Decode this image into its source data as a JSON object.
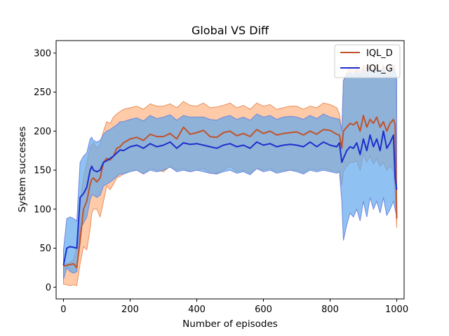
{
  "chart_data": {
    "type": "line",
    "title": "Global VS Diff",
    "xlabel": "Number of episodes",
    "ylabel": "System successes",
    "xlim": [
      -22,
      1022
    ],
    "ylim": [
      -15,
      316
    ],
    "xticks": [
      0,
      200,
      400,
      600,
      800,
      1000
    ],
    "yticks": [
      0,
      50,
      100,
      150,
      200,
      250,
      300
    ],
    "legend_position": "top-right",
    "grid": false,
    "series": [
      {
        "name": "IQL_D",
        "color": "#c0532a",
        "band_fill": "#fdb382",
        "band_edge": "#e8915e",
        "x": [
          0,
          10,
          20,
          30,
          40,
          50,
          60,
          70,
          80,
          85,
          90,
          100,
          110,
          120,
          130,
          140,
          150,
          160,
          170,
          180,
          200,
          220,
          240,
          260,
          280,
          300,
          320,
          340,
          360,
          380,
          400,
          420,
          440,
          460,
          480,
          500,
          520,
          540,
          560,
          580,
          600,
          620,
          640,
          660,
          680,
          700,
          720,
          740,
          760,
          780,
          800,
          820,
          828,
          835,
          840,
          850,
          860,
          870,
          880,
          890,
          900,
          910,
          920,
          930,
          940,
          950,
          960,
          970,
          980,
          990,
          995,
          1000
        ],
        "mean": [
          27,
          28,
          29,
          30,
          25,
          60,
          100,
          110,
          132,
          138,
          140,
          135,
          140,
          160,
          165,
          163,
          168,
          178,
          180,
          185,
          190,
          192,
          188,
          196,
          193,
          193,
          197,
          190,
          205,
          196,
          198,
          201,
          193,
          192,
          198,
          200,
          194,
          197,
          193,
          202,
          197,
          200,
          195,
          197,
          198,
          199,
          195,
          200,
          196,
          202,
          201,
          196,
          195,
          178,
          200,
          205,
          210,
          208,
          212,
          200,
          220,
          205,
          215,
          210,
          218,
          205,
          212,
          200,
          210,
          215,
          208,
          88
        ],
        "lower": [
          4,
          3,
          2,
          3,
          2,
          30,
          52,
          48,
          75,
          95,
          100,
          100,
          90,
          110,
          130,
          125,
          132,
          140,
          142,
          145,
          150,
          150,
          145,
          152,
          150,
          148,
          155,
          150,
          152,
          148,
          150,
          152,
          146,
          146,
          150,
          155,
          148,
          150,
          146,
          152,
          150,
          152,
          148,
          150,
          150,
          150,
          147,
          152,
          150,
          152,
          150,
          148,
          148,
          130,
          148,
          155,
          160,
          160,
          162,
          150,
          170,
          160,
          168,
          158,
          165,
          155,
          160,
          150,
          155,
          150,
          120,
          76
        ],
        "upper": [
          28,
          30,
          32,
          35,
          50,
          110,
          140,
          160,
          180,
          182,
          185,
          178,
          183,
          200,
          212,
          210,
          218,
          222,
          225,
          228,
          230,
          232,
          228,
          235,
          232,
          232,
          235,
          230,
          238,
          233,
          232,
          236,
          230,
          231,
          233,
          236,
          230,
          233,
          228,
          236,
          232,
          234,
          228,
          230,
          232,
          232,
          228,
          232,
          230,
          236,
          234,
          230,
          222,
          200,
          265,
          275,
          282,
          280,
          285,
          275,
          285,
          280,
          285,
          278,
          285,
          276,
          285,
          272,
          282,
          285,
          280,
          210
        ]
      },
      {
        "name": "IQL_G",
        "color": "#1b2fcc",
        "band_fill": "#5fa8ee",
        "band_edge": "#6f86de",
        "x": [
          0,
          10,
          20,
          30,
          40,
          50,
          60,
          70,
          80,
          85,
          90,
          100,
          110,
          120,
          130,
          140,
          150,
          160,
          170,
          180,
          200,
          220,
          240,
          260,
          280,
          300,
          320,
          340,
          360,
          380,
          400,
          420,
          440,
          460,
          480,
          500,
          520,
          540,
          560,
          580,
          600,
          620,
          640,
          660,
          680,
          700,
          720,
          740,
          760,
          780,
          800,
          820,
          828,
          835,
          840,
          850,
          860,
          870,
          880,
          890,
          900,
          910,
          920,
          930,
          940,
          950,
          960,
          970,
          980,
          990,
          995,
          1000
        ],
        "mean": [
          28,
          50,
          52,
          51,
          50,
          115,
          120,
          128,
          150,
          155,
          150,
          148,
          150,
          160,
          162,
          165,
          168,
          172,
          176,
          175,
          180,
          182,
          178,
          184,
          180,
          182,
          186,
          178,
          185,
          183,
          184,
          182,
          180,
          178,
          182,
          184,
          180,
          182,
          178,
          186,
          182,
          184,
          180,
          182,
          183,
          182,
          180,
          186,
          180,
          186,
          182,
          180,
          185,
          160,
          165,
          175,
          180,
          178,
          185,
          170,
          190,
          175,
          195,
          180,
          190,
          175,
          200,
          178,
          185,
          195,
          140,
          125
        ],
        "lower": [
          10,
          25,
          20,
          18,
          20,
          75,
          82,
          90,
          112,
          118,
          118,
          115,
          118,
          130,
          132,
          135,
          138,
          142,
          145,
          145,
          148,
          150,
          145,
          150,
          148,
          150,
          154,
          148,
          150,
          148,
          150,
          148,
          146,
          145,
          148,
          150,
          146,
          148,
          144,
          152,
          148,
          150,
          146,
          148,
          150,
          148,
          145,
          150,
          148,
          150,
          148,
          146,
          148,
          110,
          60,
          80,
          95,
          90,
          100,
          85,
          110,
          90,
          115,
          100,
          110,
          95,
          115,
          92,
          100,
          110,
          100,
          90
        ],
        "upper": [
          48,
          88,
          90,
          88,
          85,
          160,
          168,
          172,
          190,
          192,
          188,
          186,
          188,
          196,
          200,
          202,
          205,
          208,
          212,
          212,
          215,
          217,
          213,
          220,
          216,
          218,
          221,
          214,
          220,
          218,
          218,
          218,
          215,
          214,
          218,
          220,
          215,
          218,
          214,
          222,
          218,
          220,
          215,
          218,
          219,
          218,
          215,
          220,
          216,
          222,
          218,
          216,
          215,
          200,
          265,
          272,
          275,
          272,
          278,
          270,
          280,
          272,
          282,
          275,
          280,
          272,
          282,
          268,
          278,
          282,
          275,
          270
        ]
      }
    ]
  }
}
